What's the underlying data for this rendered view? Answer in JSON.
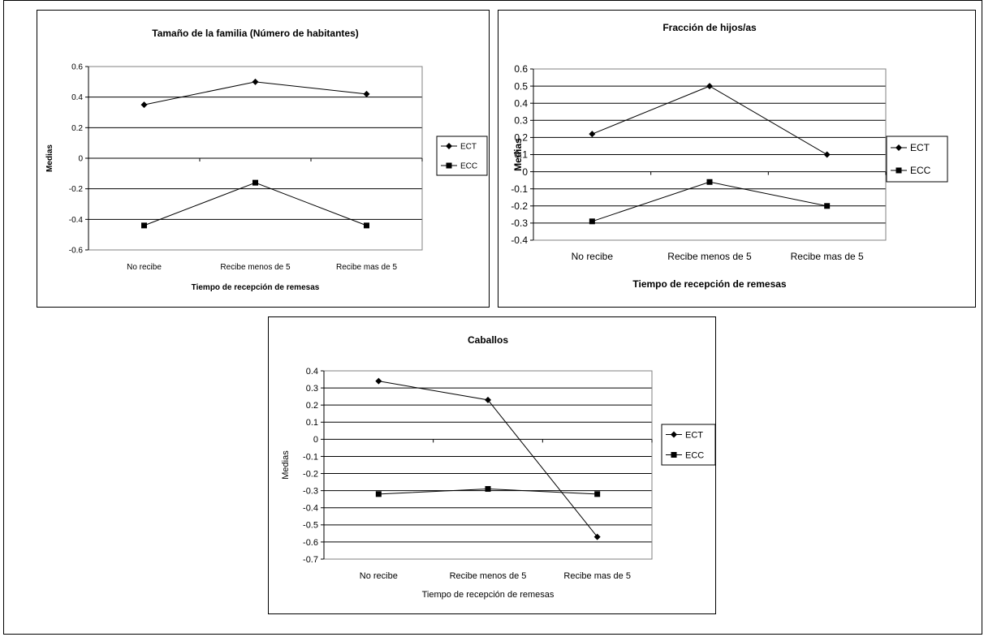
{
  "chart_data": [
    {
      "type": "line",
      "title": "Tamaño de la familia (Número de habitantes)",
      "xlabel": "Tiempo de recepción de remesas",
      "ylabel": "Medias",
      "categories": [
        "No recibe",
        "Recibe menos de 5",
        "Recibe mas de 5"
      ],
      "series": [
        {
          "name": "ECT",
          "marker": "diamond",
          "values": [
            0.35,
            0.5,
            0.42
          ]
        },
        {
          "name": "ECC",
          "marker": "square",
          "values": [
            -0.44,
            -0.16,
            -0.44
          ]
        }
      ],
      "ylim": [
        -0.6,
        0.6
      ],
      "yticks": [
        -0.6,
        -0.4,
        -0.2,
        0,
        0.2,
        0.4,
        0.6
      ],
      "ytick_labels": [
        "-0.6",
        "-0.4",
        "-0.2",
        "0",
        "0.2",
        "0.4",
        "0.6"
      ],
      "grid": true,
      "legend": "right"
    },
    {
      "type": "line",
      "title": "Fracción de hijos/as",
      "xlabel": "Tiempo de recepción de remesas",
      "ylabel": "Medias",
      "categories": [
        "No recibe",
        "Recibe menos de 5",
        "Recibe mas de 5"
      ],
      "series": [
        {
          "name": "ECT",
          "marker": "diamond",
          "values": [
            0.22,
            0.5,
            0.1
          ]
        },
        {
          "name": "ECC",
          "marker": "square",
          "values": [
            -0.29,
            -0.06,
            -0.2
          ]
        }
      ],
      "ylim": [
        -0.4,
        0.6
      ],
      "yticks": [
        -0.4,
        -0.3,
        -0.2,
        -0.1,
        0,
        0.1,
        0.2,
        0.3,
        0.4,
        0.5,
        0.6
      ],
      "ytick_labels": [
        "-0.4",
        "-0.3",
        "-0.2",
        "-0.1",
        "0",
        "0.1",
        "0.2",
        "0.3",
        "0.4",
        "0.5",
        "0.6"
      ],
      "grid": true,
      "legend": "right"
    },
    {
      "type": "line",
      "title": "Caballos",
      "xlabel": "Tiempo de recepción de remesas",
      "ylabel": "Medias",
      "categories": [
        "No recibe",
        "Recibe menos de 5",
        "Recibe mas de 5"
      ],
      "series": [
        {
          "name": "ECT",
          "marker": "diamond",
          "values": [
            0.34,
            0.23,
            -0.57
          ]
        },
        {
          "name": "ECC",
          "marker": "square",
          "values": [
            -0.32,
            -0.29,
            -0.32
          ]
        }
      ],
      "ylim": [
        -0.7,
        0.4
      ],
      "yticks": [
        -0.7,
        -0.6,
        -0.5,
        -0.4,
        -0.3,
        -0.2,
        -0.1,
        0,
        0.1,
        0.2,
        0.3,
        0.4
      ],
      "ytick_labels": [
        "-0.7",
        "-0.6",
        "-0.5",
        "-0.4",
        "-0.3",
        "-0.2",
        "-0.1",
        "0",
        "0.1",
        "0.2",
        "0.3",
        "0.4"
      ],
      "grid": true,
      "legend": "right"
    }
  ]
}
